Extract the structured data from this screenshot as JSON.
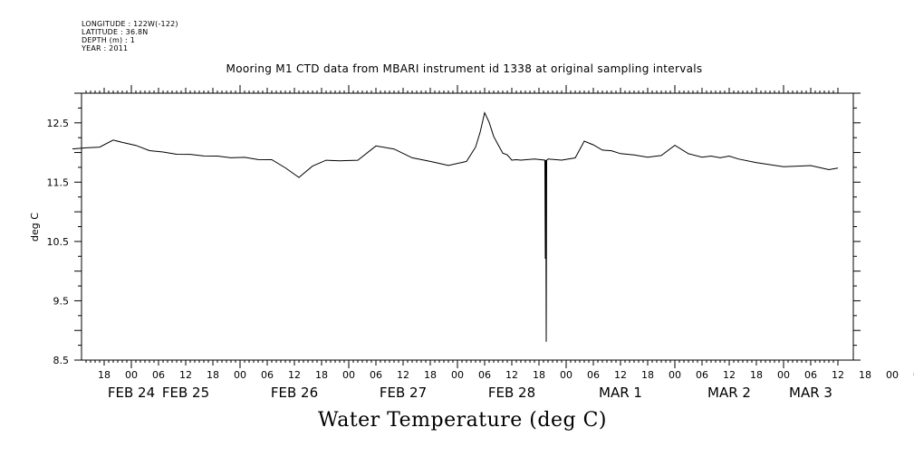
{
  "header": {
    "longitude": "LONGITUDE : 122W(-122)",
    "latitude": "LATITUDE : 36.8N",
    "depth": "DEPTH (m) : 1",
    "year": "YEAR : 2011"
  },
  "chart_data": {
    "type": "line",
    "title": "Mooring M1 CTD data from MBARI instrument id 1338 at original sampling intervals",
    "xlabel": "Water Temperature (deg C)",
    "ylabel": "deg C",
    "ylim": [
      8.5,
      13.0
    ],
    "yticks": [
      8.5,
      9.5,
      10.5,
      11.5,
      12.5
    ],
    "x_units": "hours since 2011-02-24 00:00",
    "xlim": [
      -14,
      156
    ],
    "hour_tick_labels": [
      "18",
      "00",
      "06",
      "12",
      "18",
      "00",
      "06",
      "12",
      "18",
      "00",
      "06",
      "12",
      "18",
      "00",
      "06",
      "12",
      "18",
      "00",
      "06",
      "12",
      "18",
      "00",
      "06",
      "12",
      "18",
      "00",
      "06",
      "12",
      "18",
      "00",
      "06",
      "12"
    ],
    "date_labels": [
      {
        "label": "FEB 24",
        "hour": 0
      },
      {
        "label": "FEB 25",
        "hour": 12
      },
      {
        "label": "FEB 26",
        "hour": 36
      },
      {
        "label": "FEB 27",
        "hour": 60
      },
      {
        "label": "FEB 28",
        "hour": 84
      },
      {
        "label": "MAR  1",
        "hour": 108
      },
      {
        "label": "MAR  2",
        "hour": 132
      },
      {
        "label": "MAR  3",
        "hour": 150
      }
    ],
    "grid": false,
    "series": [
      {
        "x": [
          -13,
          -10,
          -7,
          -4,
          -2,
          1,
          4,
          7,
          10,
          13,
          16,
          19,
          22,
          25,
          28,
          31,
          34,
          37,
          40,
          43,
          46,
          50,
          54,
          58,
          62,
          66,
          70,
          74,
          76,
          77,
          78,
          79,
          80,
          81,
          82,
          83,
          84,
          85,
          86,
          89,
          92,
          95,
          98,
          100,
          102,
          104,
          106,
          108,
          111,
          114,
          117,
          120,
          123,
          126,
          128,
          130,
          132,
          134,
          138,
          144,
          150,
          154,
          156
        ],
        "y": [
          12.07,
          12.07,
          12.1,
          12.2,
          12.18,
          12.11,
          12.04,
          12.0,
          11.98,
          11.96,
          11.95,
          11.93,
          11.92,
          11.91,
          11.89,
          11.87,
          11.75,
          11.57,
          11.78,
          11.86,
          11.87,
          11.86,
          12.12,
          12.05,
          11.92,
          11.84,
          11.79,
          11.84,
          12.1,
          12.33,
          12.68,
          12.5,
          12.28,
          12.12,
          12.0,
          11.95,
          11.88,
          11.87,
          11.88,
          11.88,
          11.88,
          11.88,
          11.9,
          12.2,
          12.12,
          12.05,
          12.02,
          11.99,
          11.95,
          11.93,
          11.94,
          12.13,
          11.97,
          11.93,
          11.93,
          11.92,
          11.93,
          11.9,
          11.82,
          11.77,
          11.77,
          11.72,
          11.73
        ],
        "spike": {
          "x": 91.5,
          "min": 8.8,
          "secondary": 10.2
        }
      }
    ]
  }
}
